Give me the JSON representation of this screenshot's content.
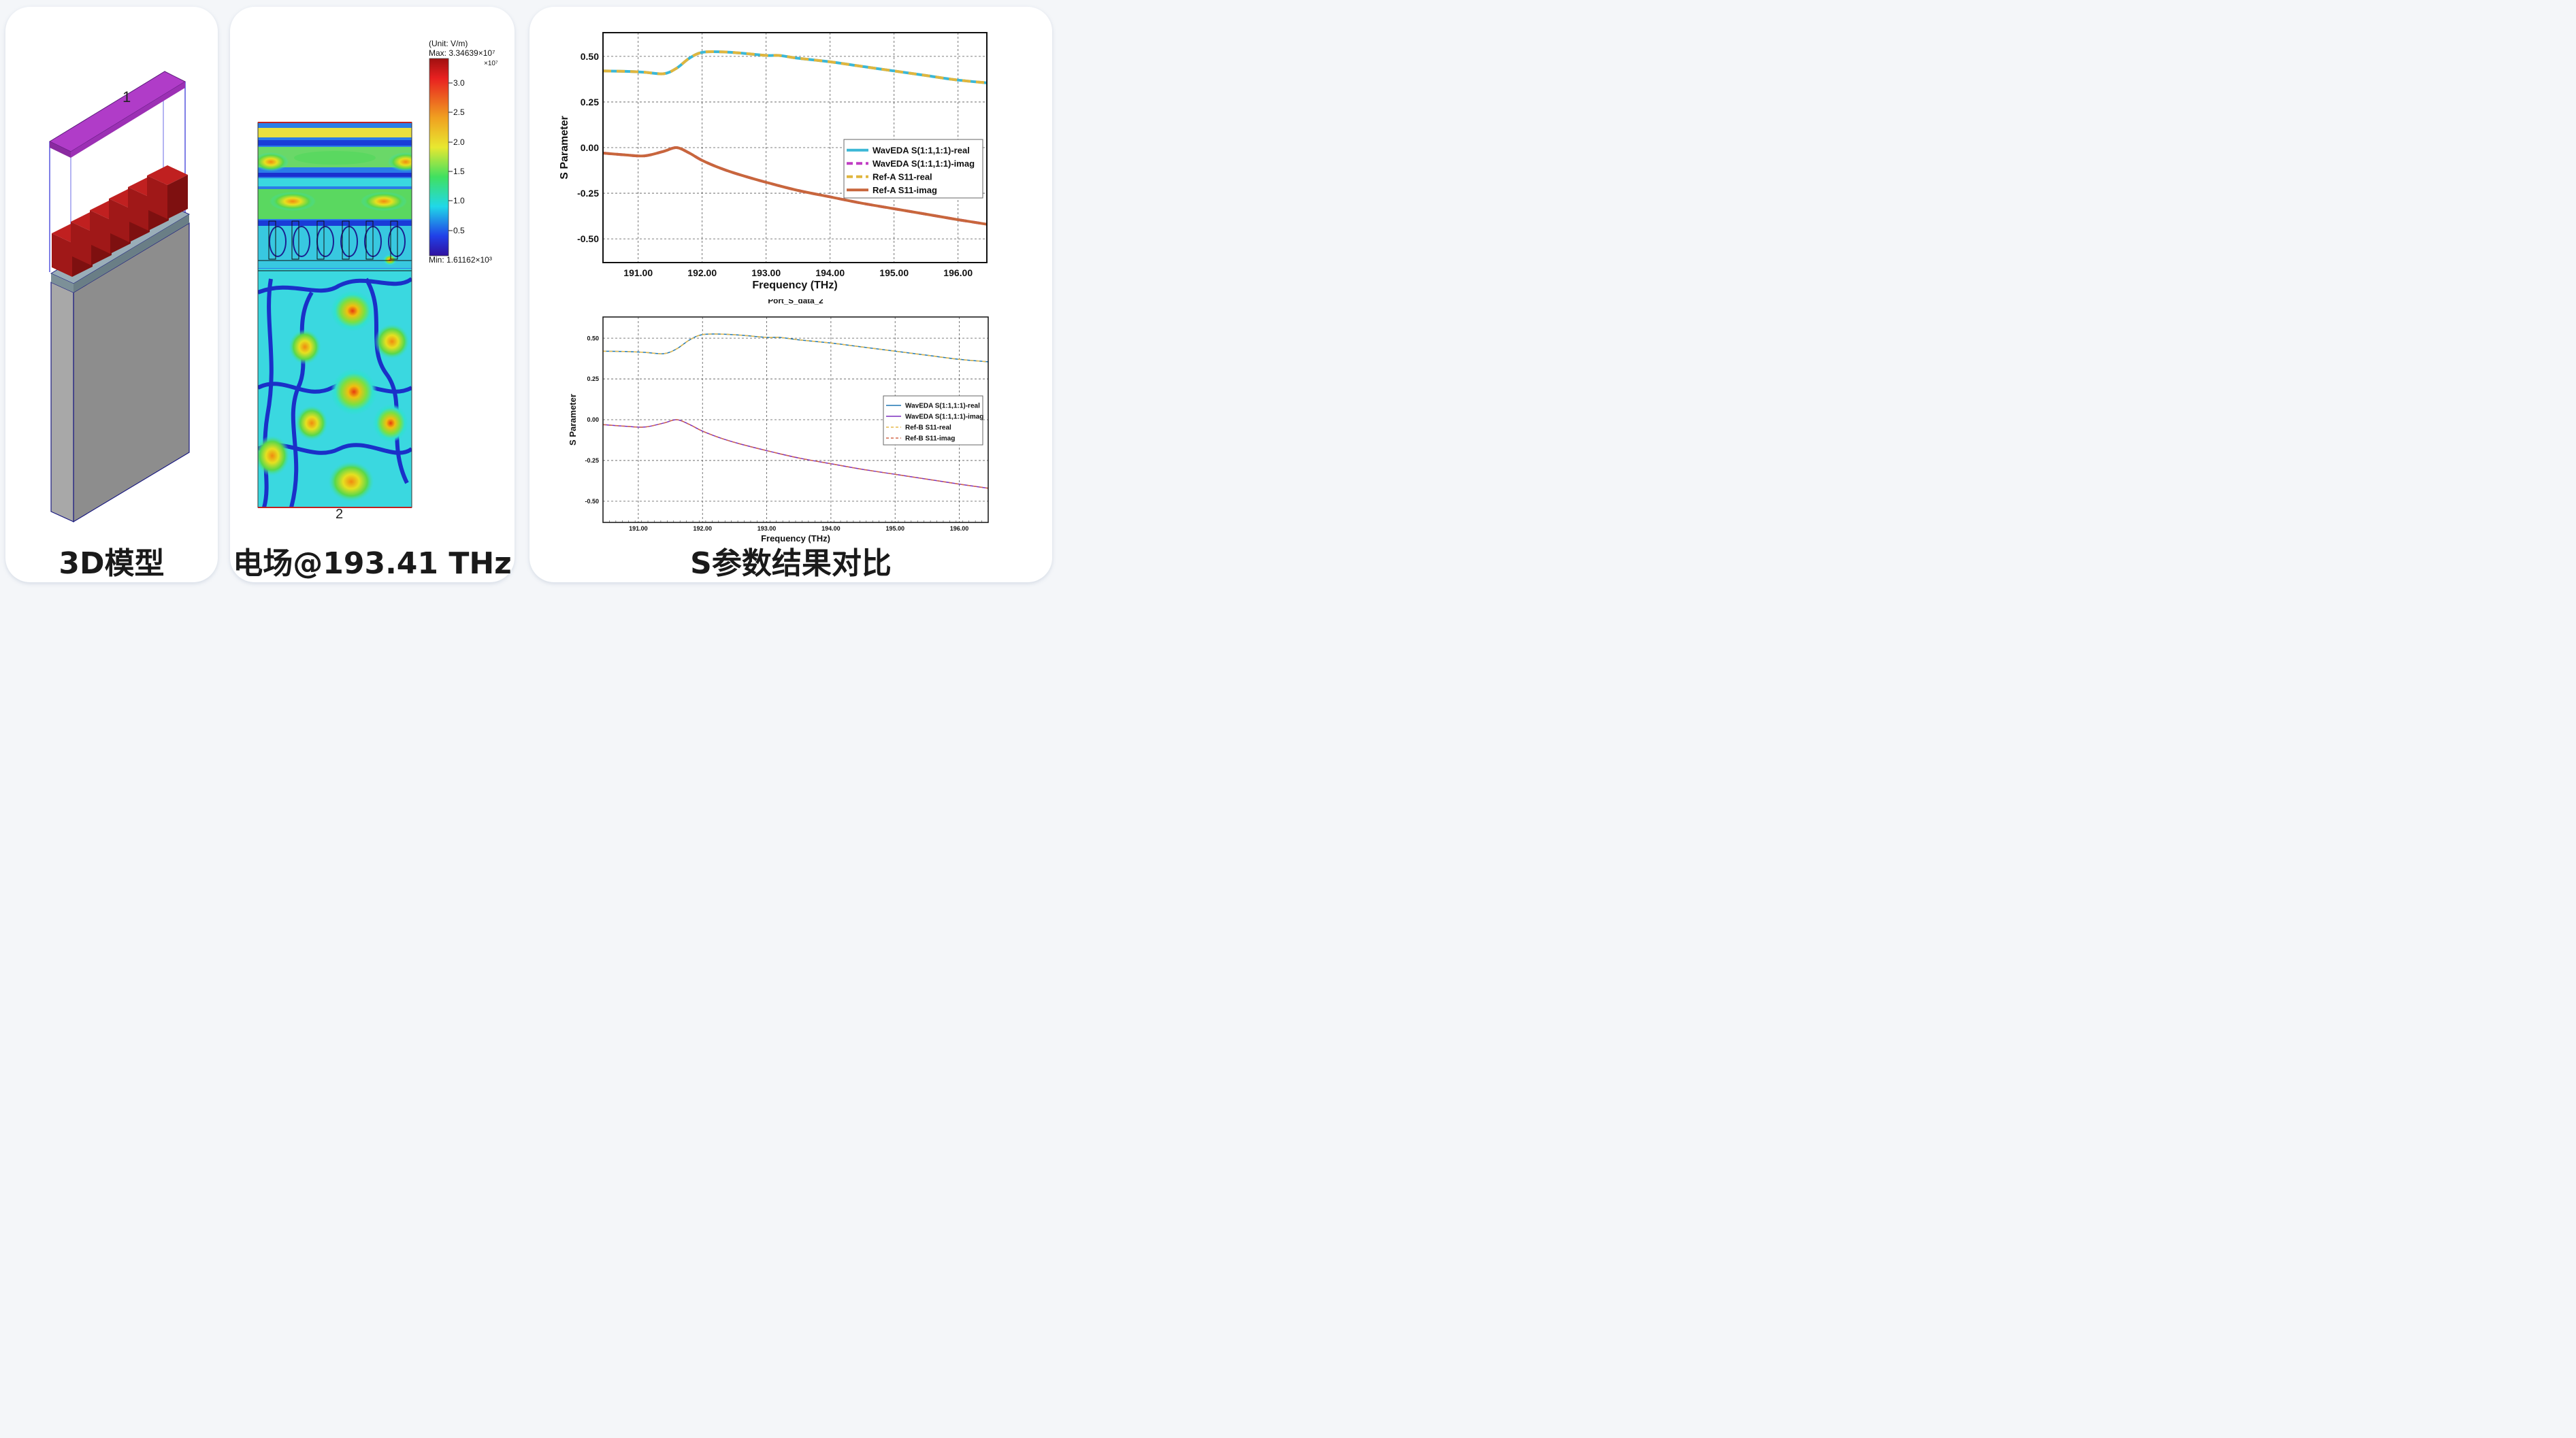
{
  "captions": {
    "model": "3D模型",
    "field": "电场@193.41 THz",
    "sparam": "S参数结果对比"
  },
  "model": {
    "port_top": "1"
  },
  "field": {
    "port_bottom": "2",
    "colorbar": {
      "unit": "(Unit: V/m)",
      "max_label": "Max: 3.34639×10⁷",
      "scale_label": "×10⁷",
      "min_label": "Min: 1.61162×10³",
      "ticks": [
        "3.0",
        "2.5",
        "2.0",
        "1.5",
        "1.0",
        "0.5"
      ]
    }
  },
  "chart_data": [
    {
      "type": "line",
      "title": "",
      "xlabel": "Frequency (THz)",
      "ylabel": "S Parameter",
      "xlim": [
        190.45,
        196.45
      ],
      "ylim": [
        -0.63,
        0.63
      ],
      "xticks": [
        191.0,
        192.0,
        193.0,
        194.0,
        195.0,
        196.0
      ],
      "xtick_labels": [
        "191.00",
        "192.00",
        "193.00",
        "194.00",
        "195.00",
        "196.00"
      ],
      "yticks": [
        0.5,
        0.25,
        0.0,
        -0.25,
        -0.5
      ],
      "ytick_labels": [
        "0.50",
        "0.25",
        "0.00",
        "-0.25",
        "-0.50"
      ],
      "grid": true,
      "legend_position": "right",
      "series": [
        {
          "name": "WavEDA S(1:1,1:1)-real",
          "color": "#3bb7d6",
          "style": "solid",
          "width": 4,
          "x": [
            190.45,
            190.8,
            191.1,
            191.4,
            191.6,
            191.8,
            192.0,
            192.3,
            192.6,
            193.0,
            193.2,
            193.5,
            194.0,
            194.5,
            195.0,
            195.5,
            196.0,
            196.45
          ],
          "y": [
            0.42,
            0.418,
            0.413,
            0.405,
            0.435,
            0.49,
            0.522,
            0.525,
            0.518,
            0.505,
            0.505,
            0.49,
            0.47,
            0.445,
            0.42,
            0.395,
            0.37,
            0.355
          ]
        },
        {
          "name": "WavEDA S(1:1,1:1)-imag",
          "color": "#c03cc3",
          "style": "dash",
          "width": 4,
          "x": [
            190.45,
            190.8,
            191.1,
            191.4,
            191.6,
            191.8,
            192.0,
            192.3,
            192.6,
            193.0,
            193.5,
            194.0,
            194.5,
            195.0,
            195.5,
            196.0,
            196.45
          ],
          "y": [
            -0.03,
            -0.04,
            -0.045,
            -0.02,
            0.0,
            -0.03,
            -0.07,
            -0.115,
            -0.15,
            -0.19,
            -0.235,
            -0.27,
            -0.305,
            -0.335,
            -0.365,
            -0.395,
            -0.42
          ]
        },
        {
          "name": "Ref-A S11-real",
          "color": "#e0b63e",
          "style": "dash",
          "width": 4,
          "x": [
            190.45,
            190.8,
            191.1,
            191.4,
            191.6,
            191.8,
            192.0,
            192.3,
            192.6,
            193.0,
            193.2,
            193.5,
            194.0,
            194.5,
            195.0,
            195.5,
            196.0,
            196.45
          ],
          "y": [
            0.42,
            0.418,
            0.413,
            0.405,
            0.435,
            0.49,
            0.522,
            0.525,
            0.518,
            0.505,
            0.505,
            0.49,
            0.47,
            0.445,
            0.42,
            0.395,
            0.37,
            0.355
          ]
        },
        {
          "name": "Ref-A S11-imag",
          "color": "#c8663c",
          "style": "solid",
          "width": 4,
          "x": [
            190.45,
            190.8,
            191.1,
            191.4,
            191.6,
            191.8,
            192.0,
            192.3,
            192.6,
            193.0,
            193.5,
            194.0,
            194.5,
            195.0,
            195.5,
            196.0,
            196.45
          ],
          "y": [
            -0.03,
            -0.04,
            -0.045,
            -0.02,
            0.0,
            -0.03,
            -0.07,
            -0.115,
            -0.15,
            -0.19,
            -0.235,
            -0.27,
            -0.305,
            -0.335,
            -0.365,
            -0.395,
            -0.42
          ]
        }
      ]
    },
    {
      "type": "line",
      "title": "Port_S_data_2",
      "xlabel": "Frequency (THz)",
      "ylabel": "S Parameter",
      "xlim": [
        190.45,
        196.45
      ],
      "ylim": [
        -0.63,
        0.63
      ],
      "xticks": [
        191.0,
        192.0,
        193.0,
        194.0,
        195.0,
        196.0
      ],
      "xtick_labels": [
        "191.00",
        "192.00",
        "193.00",
        "194.00",
        "195.00",
        "196.00"
      ],
      "yticks": [
        0.5,
        0.25,
        0.0,
        -0.25,
        -0.5
      ],
      "ytick_labels": [
        "0.50",
        "0.25",
        "0.00",
        "-0.25",
        "-0.50"
      ],
      "grid": true,
      "legend_position": "right",
      "series": [
        {
          "name": "WavEDA S(1:1,1:1)-real",
          "color": "#1f77b4",
          "style": "solid",
          "width": 1.5,
          "x": [
            190.45,
            190.8,
            191.1,
            191.4,
            191.6,
            191.8,
            192.0,
            192.3,
            192.6,
            193.0,
            193.2,
            193.5,
            194.0,
            194.5,
            195.0,
            195.5,
            196.0,
            196.45
          ],
          "y": [
            0.42,
            0.418,
            0.413,
            0.405,
            0.435,
            0.49,
            0.522,
            0.525,
            0.518,
            0.505,
            0.505,
            0.49,
            0.47,
            0.445,
            0.42,
            0.395,
            0.37,
            0.355
          ]
        },
        {
          "name": "WavEDA S(1:1,1:1)-imag",
          "color": "#7b2fbf",
          "style": "solid",
          "width": 1.5,
          "x": [
            190.45,
            190.8,
            191.1,
            191.4,
            191.6,
            191.8,
            192.0,
            192.3,
            192.6,
            193.0,
            193.5,
            194.0,
            194.5,
            195.0,
            195.5,
            196.0,
            196.45
          ],
          "y": [
            -0.03,
            -0.04,
            -0.045,
            -0.02,
            0.0,
            -0.03,
            -0.07,
            -0.115,
            -0.15,
            -0.19,
            -0.235,
            -0.27,
            -0.305,
            -0.335,
            -0.365,
            -0.395,
            -0.42
          ]
        },
        {
          "name": "Ref-B S11-real",
          "color": "#e6b94a",
          "style": "dash",
          "width": 1.5,
          "x": [
            190.45,
            190.8,
            191.1,
            191.4,
            191.6,
            191.8,
            192.0,
            192.3,
            192.6,
            193.0,
            193.2,
            193.5,
            194.0,
            194.5,
            195.0,
            195.5,
            196.0,
            196.45
          ],
          "y": [
            0.42,
            0.418,
            0.413,
            0.405,
            0.435,
            0.49,
            0.522,
            0.525,
            0.518,
            0.505,
            0.505,
            0.49,
            0.47,
            0.445,
            0.42,
            0.395,
            0.37,
            0.355
          ]
        },
        {
          "name": "Ref-B S11-imag",
          "color": "#d2694a",
          "style": "dash",
          "width": 1.5,
          "x": [
            190.45,
            190.8,
            191.1,
            191.4,
            191.6,
            191.8,
            192.0,
            192.3,
            192.6,
            193.0,
            193.5,
            194.0,
            194.5,
            195.0,
            195.5,
            196.0,
            196.45
          ],
          "y": [
            -0.03,
            -0.04,
            -0.045,
            -0.02,
            0.0,
            -0.03,
            -0.07,
            -0.115,
            -0.15,
            -0.19,
            -0.235,
            -0.27,
            -0.305,
            -0.335,
            -0.365,
            -0.395,
            -0.42
          ]
        }
      ]
    }
  ]
}
